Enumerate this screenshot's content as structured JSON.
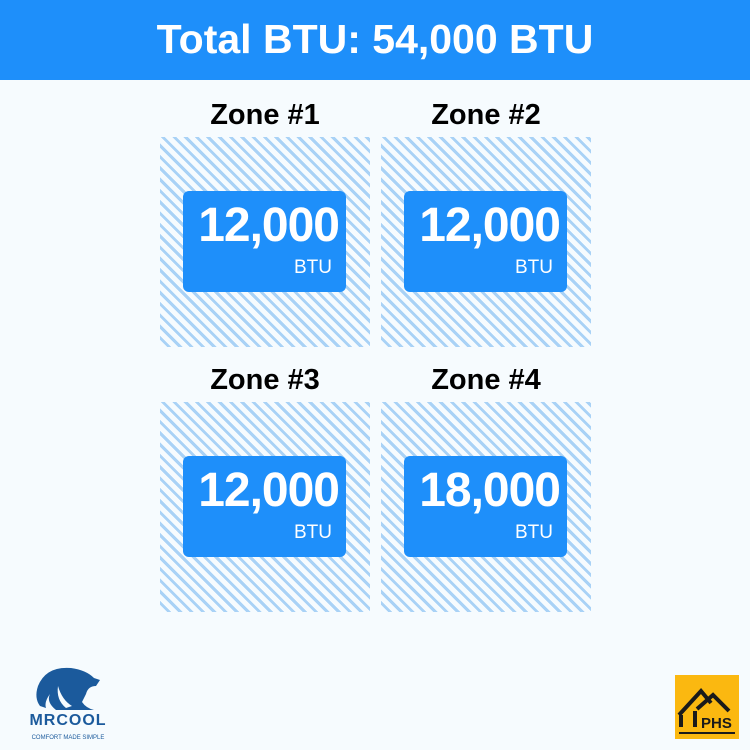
{
  "header": {
    "title": "Total BTU: 54,000 BTU"
  },
  "zones": [
    {
      "title": "Zone #1",
      "value": "12,000",
      "unit": "BTU"
    },
    {
      "title": "Zone #2",
      "value": "12,000",
      "unit": "BTU"
    },
    {
      "title": "Zone #3",
      "value": "12,000",
      "unit": "BTU"
    },
    {
      "title": "Zone #4",
      "value": "18,000",
      "unit": "BTU"
    }
  ],
  "logos": {
    "mrcool": "MRCOOL",
    "mrcool_tagline": "COMFORT MADE SIMPLE",
    "phs": "PHS"
  },
  "colors": {
    "accent": "#1e8ffa",
    "hatch": "#a9d2f6",
    "phs_bg": "#fbb810",
    "mrcool": "#1b5a9c"
  }
}
